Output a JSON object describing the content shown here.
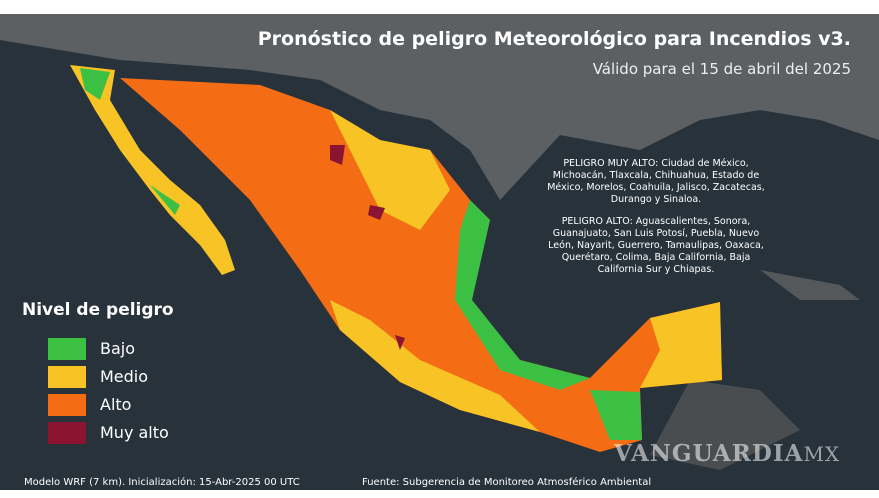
{
  "header": {
    "title": "Pronóstico de peligro Meteorológico para Incendios v3.",
    "subtitle": "Válido para el  15 de abril del 2025"
  },
  "legend": {
    "title": "Nivel de peligro",
    "items": [
      {
        "label": "Bajo",
        "color": "#3cc043"
      },
      {
        "label": "Medio",
        "color": "#f7c325"
      },
      {
        "label": "Alto",
        "color": "#f46d14"
      },
      {
        "label": "Muy alto",
        "color": "#8b1430"
      }
    ]
  },
  "notes": [
    "PELIGRO MUY ALTO:  Ciudad de México, Michoacán, Tlaxcala, Chihuahua, Estado de México, Morelos, Coahuila, Jalisco, Zacatecas, Durango y Sinaloa.",
    "PELIGRO ALTO: Aguascalientes, Sonora, Guanajuato, San Luis Potosí, Puebla, Nuevo León, Nayarit, Guerrero, Tamaulipas, Oaxaca, Querétaro, Colima, Baja California, Baja California Sur y Chiapas."
  ],
  "footer": {
    "model": "Modelo WRF (7 km). Inicialización:  15-Abr-2025 00 UTC",
    "source": "Fuente: Subgerencia de Monitoreo Atmosférico Ambiental"
  },
  "watermark": {
    "brand": "VANGUARDIA",
    "suffix": "MX"
  }
}
